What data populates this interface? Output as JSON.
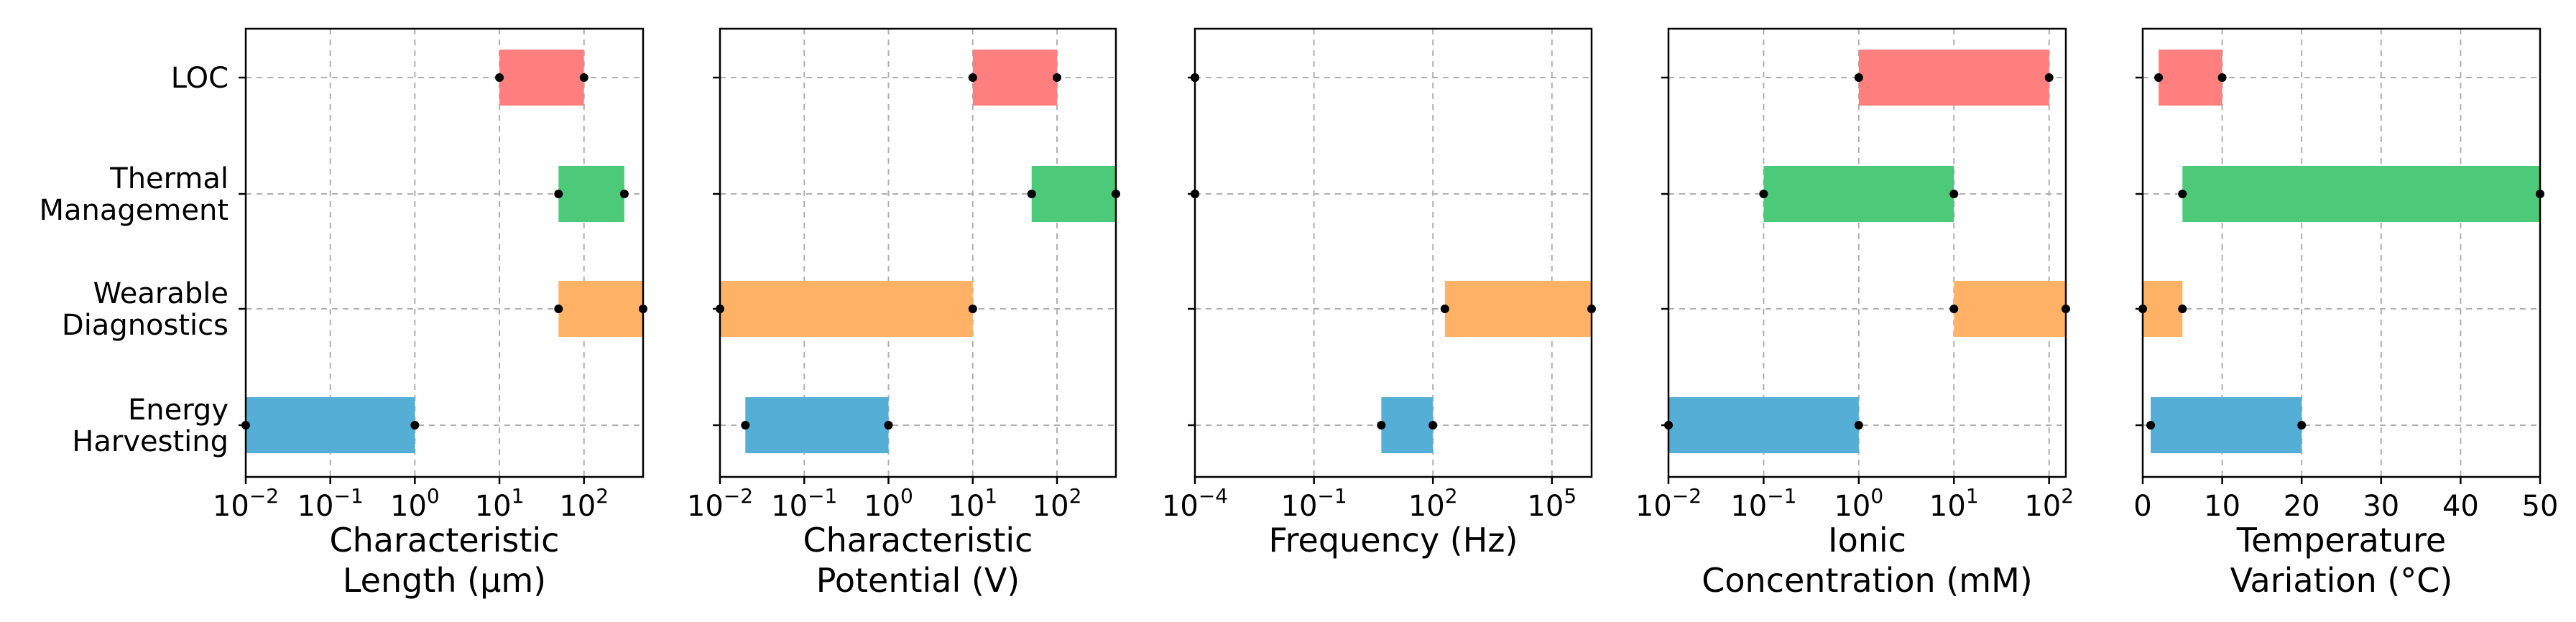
{
  "chart_data": {
    "type": "range-bar",
    "categories": [
      "LOC",
      "Thermal Management",
      "Wearable Diagnostics",
      "Energy Harvesting"
    ],
    "category_label_lines": [
      [
        "LOC"
      ],
      [
        "Thermal",
        "Management"
      ],
      [
        "Wearable",
        "Diagnostics"
      ],
      [
        "Energy",
        "Harvesting"
      ]
    ],
    "category_colors": {
      "LOC": "#ff7f7f",
      "Thermal Management": "#4dc97a",
      "Wearable Diagnostics": "#ffb266",
      "Energy Harvesting": "#55aed6"
    },
    "marker_color": "#000000",
    "grid": true,
    "panels": [
      {
        "xlabel_lines": [
          "Characteristic",
          "Length (µm)"
        ],
        "xscale": "log",
        "xlim": [
          0.01,
          500
        ],
        "tick_labels": [
          {
            "value": 0.01,
            "base": "10",
            "exp": "−2"
          },
          {
            "value": 0.1,
            "base": "10",
            "exp": "−1"
          },
          {
            "value": 1,
            "base": "10",
            "exp": "0"
          },
          {
            "value": 10,
            "base": "10",
            "exp": "1"
          },
          {
            "value": 100,
            "base": "10",
            "exp": "2"
          }
        ],
        "ranges": [
          {
            "category": "LOC",
            "min": 10,
            "max": 100
          },
          {
            "category": "Thermal Management",
            "min": 50,
            "max": 300
          },
          {
            "category": "Wearable Diagnostics",
            "min": 50,
            "max": 500
          },
          {
            "category": "Energy Harvesting",
            "min": 0.01,
            "max": 1
          }
        ]
      },
      {
        "xlabel_lines": [
          "Characteristic",
          "Potential (V)"
        ],
        "xscale": "log",
        "xlim": [
          0.01,
          500
        ],
        "tick_labels": [
          {
            "value": 0.01,
            "base": "10",
            "exp": "−2"
          },
          {
            "value": 0.1,
            "base": "10",
            "exp": "−1"
          },
          {
            "value": 1,
            "base": "10",
            "exp": "0"
          },
          {
            "value": 10,
            "base": "10",
            "exp": "1"
          },
          {
            "value": 100,
            "base": "10",
            "exp": "2"
          }
        ],
        "ranges": [
          {
            "category": "LOC",
            "min": 10,
            "max": 100
          },
          {
            "category": "Thermal Management",
            "min": 50,
            "max": 500
          },
          {
            "category": "Wearable Diagnostics",
            "min": 0.01,
            "max": 10
          },
          {
            "category": "Energy Harvesting",
            "min": 0.02,
            "max": 1
          }
        ]
      },
      {
        "xlabel_lines": [
          "Frequency (Hz)"
        ],
        "xscale": "log",
        "xlim": [
          0.0001,
          1000000
        ],
        "tick_labels": [
          {
            "value": 0.0001,
            "base": "10",
            "exp": "−4"
          },
          {
            "value": 0.1,
            "base": "10",
            "exp": "−1"
          },
          {
            "value": 100,
            "base": "10",
            "exp": "2"
          },
          {
            "value": 100000,
            "base": "10",
            "exp": "5"
          }
        ],
        "ranges": [
          {
            "category": "LOC",
            "min": 0.0001,
            "max": 0.0001
          },
          {
            "category": "Thermal Management",
            "min": 0.0001,
            "max": 0.0001
          },
          {
            "category": "Wearable Diagnostics",
            "min": 200,
            "max": 1000000
          },
          {
            "category": "Energy Harvesting",
            "min": 5,
            "max": 100
          }
        ]
      },
      {
        "xlabel_lines": [
          "Ionic",
          "Concentration (mM)"
        ],
        "xscale": "log",
        "xlim": [
          0.01,
          150
        ],
        "tick_labels": [
          {
            "value": 0.01,
            "base": "10",
            "exp": "−2"
          },
          {
            "value": 0.1,
            "base": "10",
            "exp": "−1"
          },
          {
            "value": 1,
            "base": "10",
            "exp": "0"
          },
          {
            "value": 10,
            "base": "10",
            "exp": "1"
          },
          {
            "value": 100,
            "base": "10",
            "exp": "2"
          }
        ],
        "ranges": [
          {
            "category": "LOC",
            "min": 1,
            "max": 100
          },
          {
            "category": "Thermal Management",
            "min": 0.1,
            "max": 10
          },
          {
            "category": "Wearable Diagnostics",
            "min": 10,
            "max": 150
          },
          {
            "category": "Energy Harvesting",
            "min": 0.01,
            "max": 1
          }
        ]
      },
      {
        "xlabel_lines": [
          "Temperature",
          "Variation (°C)"
        ],
        "xscale": "linear",
        "xlim": [
          0,
          50
        ],
        "tick_labels": [
          {
            "value": 0,
            "text": "0"
          },
          {
            "value": 10,
            "text": "10"
          },
          {
            "value": 20,
            "text": "20"
          },
          {
            "value": 30,
            "text": "30"
          },
          {
            "value": 40,
            "text": "40"
          },
          {
            "value": 50,
            "text": "50"
          }
        ],
        "ranges": [
          {
            "category": "LOC",
            "min": 2,
            "max": 10
          },
          {
            "category": "Thermal Management",
            "min": 5,
            "max": 50
          },
          {
            "category": "Wearable Diagnostics",
            "min": 0,
            "max": 5
          },
          {
            "category": "Energy Harvesting",
            "min": 1,
            "max": 20
          }
        ]
      }
    ]
  }
}
